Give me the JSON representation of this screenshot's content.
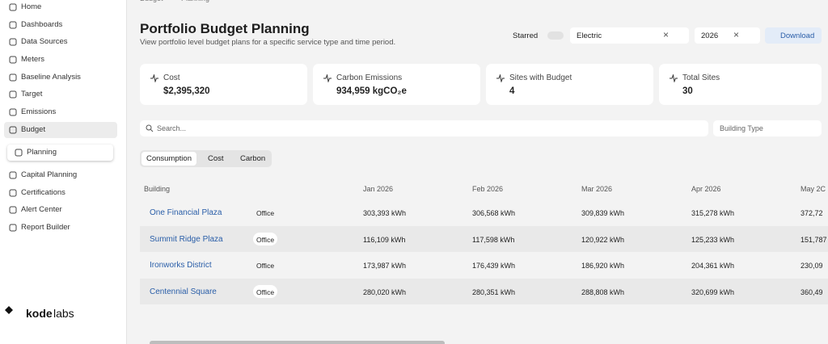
{
  "breadcrumb": [
    "Budget",
    "Planning"
  ],
  "nav": {
    "items": [
      "Home",
      "Dashboards",
      "Data Sources",
      "Meters",
      "Baseline Analysis",
      "Target",
      "Emissions",
      "Budget",
      "Planning",
      "Capital Planning",
      "Certifications",
      "Alert Center",
      "Report Builder"
    ]
  },
  "logo": {
    "parts": [
      "kode",
      "labs"
    ]
  },
  "header": {
    "title": "Portfolio Budget Planning",
    "subtitle": "View portfolio level budget plans for a specific service type and time period."
  },
  "controls": {
    "starred": "Starred",
    "service": "Electric",
    "year": "2026",
    "download": "Download"
  },
  "cards": [
    {
      "label": "Cost",
      "value": "$2,395,320"
    },
    {
      "label": "Carbon Emissions",
      "value": "934,959 kgCO₂e"
    },
    {
      "label": "Sites with Budget",
      "value": "4"
    },
    {
      "label": "Total Sites",
      "value": "30"
    }
  ],
  "search": {
    "placeholder": "Search...",
    "filter": "Building Type"
  },
  "tabs": [
    "Consumption",
    "Cost",
    "Carbon"
  ],
  "table": {
    "headers": [
      "Building",
      "Jan 2026",
      "Feb 2026",
      "Mar 2026",
      "Apr 2026",
      "May 2C"
    ],
    "rows": [
      [
        "One Financial Plaza",
        "Office",
        "303,393 kWh",
        "306,568 kWh",
        "309,839 kWh",
        "315,278 kWh",
        "372,72"
      ],
      [
        "Summit Ridge Plaza",
        "Office",
        "116,109 kWh",
        "117,598 kWh",
        "120,922 kWh",
        "125,233 kWh",
        "151,787"
      ],
      [
        "Ironworks District",
        "Office",
        "173,987 kWh",
        "176,439 kWh",
        "186,920 kWh",
        "204,361 kWh",
        "230,09"
      ],
      [
        "Centennial Square",
        "Office",
        "280,020 kWh",
        "280,351 kWh",
        "288,808 kWh",
        "320,699 kWh",
        "360,49"
      ]
    ]
  }
}
